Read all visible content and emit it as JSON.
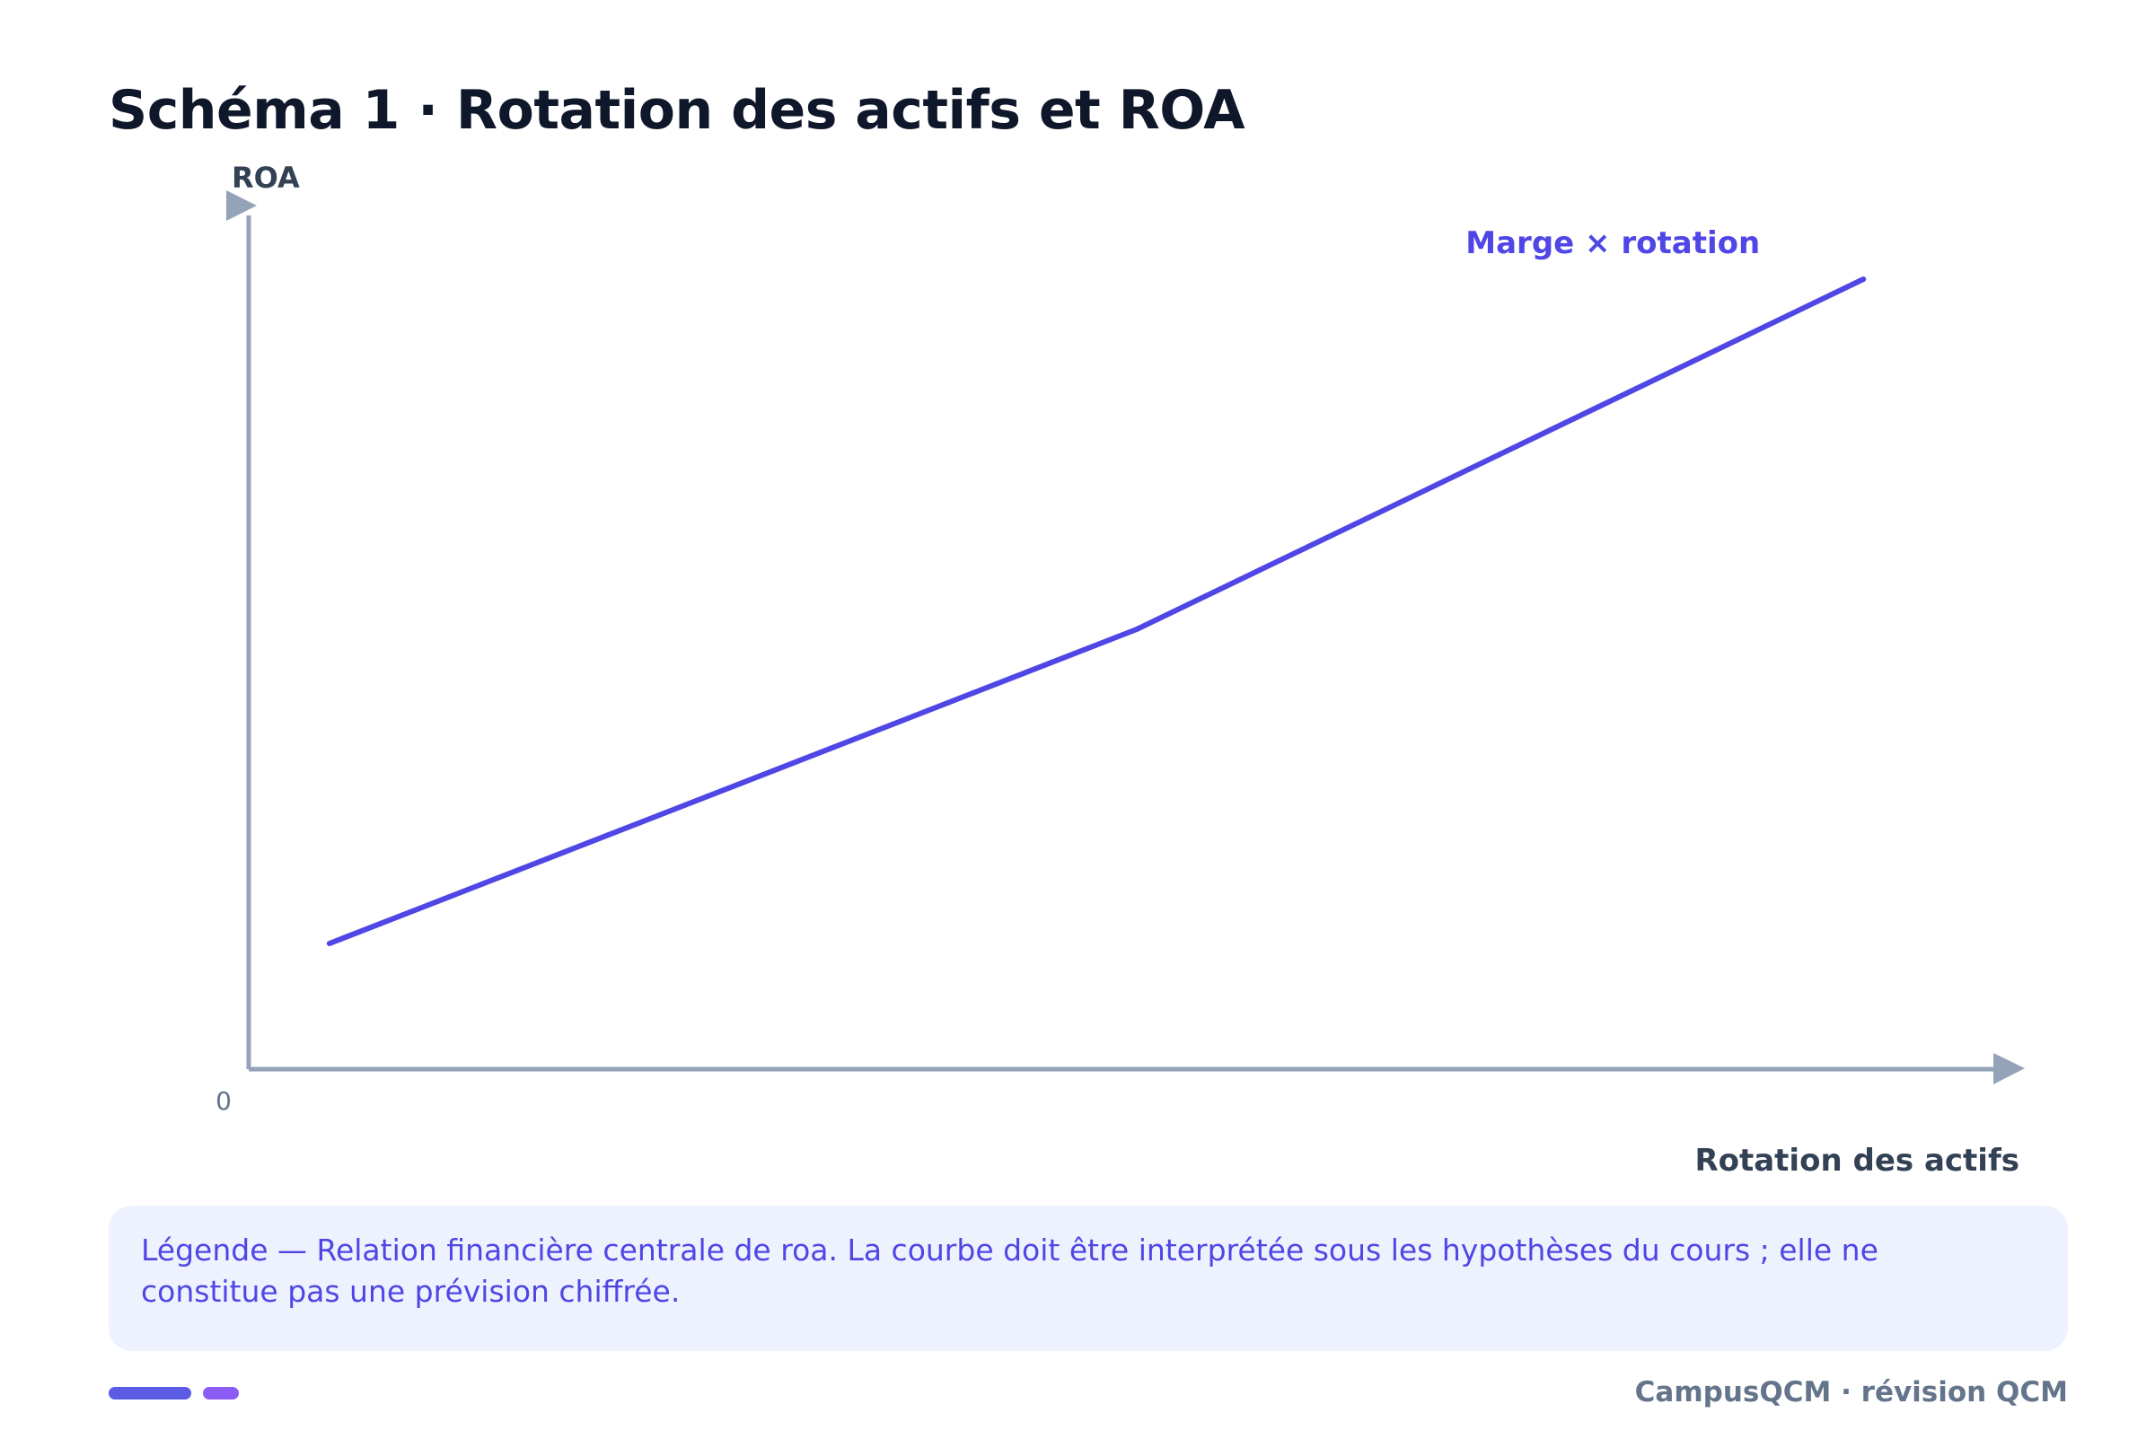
{
  "title": "Schéma 1 · Rotation des actifs et ROA",
  "chart_data": {
    "type": "line",
    "ylabel": "ROA",
    "xlabel": "Rotation des actifs",
    "origin_label": "0",
    "series": [
      {
        "name": "Marge × rotation",
        "x": [
          0.5,
          5.5,
          10.0
        ],
        "y": [
          1.4,
          4.9,
          8.8
        ]
      }
    ],
    "xlim": [
      0,
      11
    ],
    "ylim": [
      0,
      10
    ],
    "grid": false,
    "colors": {
      "line": "#4f46e5",
      "axis": "#94a3b8"
    }
  },
  "legend": {
    "text": "Légende — Relation financière centrale de roa. La courbe doit être interprétée sous les hypothèses du cours ; elle ne constitue pas une prévision chiffrée."
  },
  "footer": {
    "brand": "CampusQCM · révision QCM"
  }
}
